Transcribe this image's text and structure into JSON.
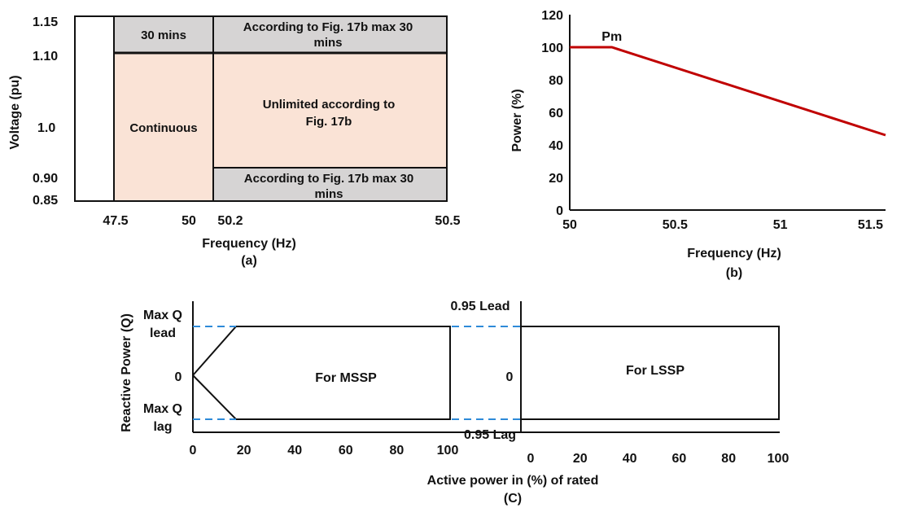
{
  "colors": {
    "gray_zone": "#d6d4d4",
    "peach_zone": "#fae3d6",
    "red_line": "#c00000",
    "blue_dash": "#2e8ad8",
    "ink": "#111111"
  },
  "chart_data": [
    {
      "type": "area",
      "panel": "(a)",
      "xlabel": "Frequency (Hz)",
      "ylabel": "Voltage (pu)",
      "x_ticks": [
        "47.5",
        "50",
        "50.2",
        "50.5"
      ],
      "y_ticks": [
        "1.15",
        "1.10",
        "1.0",
        "0.90",
        "0.85"
      ],
      "regions": [
        {
          "label": "30 mins",
          "f_from": 47.5,
          "f_to": 50.2,
          "v_from": 1.1,
          "v_to": 1.15,
          "color": "gray"
        },
        {
          "label": "According to Fig. 17b max 30 mins",
          "f_from": 50.2,
          "f_to": 50.5,
          "v_from": 1.1,
          "v_to": 1.15,
          "color": "gray"
        },
        {
          "label": "Continuous",
          "f_from": 47.5,
          "f_to": 50.2,
          "v_from": 0.85,
          "v_to": 1.1,
          "color": "peach"
        },
        {
          "label": "Unlimited according to Fig. 17b",
          "f_from": 50.2,
          "f_to": 50.5,
          "v_from": 0.9,
          "v_to": 1.1,
          "color": "peach"
        },
        {
          "label": "According to Fig. 17b max 30 mins",
          "f_from": 50.2,
          "f_to": 50.5,
          "v_from": 0.85,
          "v_to": 0.9,
          "color": "gray"
        }
      ]
    },
    {
      "type": "line",
      "panel": "(b)",
      "xlabel": "Frequency (Hz)",
      "ylabel": "Power (%)",
      "xlim": [
        50,
        51.5
      ],
      "ylim": [
        0,
        120
      ],
      "x_ticks": [
        50,
        50.5,
        51,
        51.5
      ],
      "y_ticks": [
        0,
        20,
        40,
        60,
        80,
        100,
        120
      ],
      "series": [
        {
          "name": "",
          "x": [
            50,
            50.2,
            51.5
          ],
          "y": [
            100,
            100,
            46
          ]
        }
      ],
      "annotations": [
        {
          "text": "Pm",
          "x": 50.2,
          "y": 100
        }
      ]
    },
    {
      "type": "line",
      "panel": "(C)",
      "xlabel": "Active power in (%) of rated",
      "ylabel": "Reactive Power (Q)",
      "left": {
        "label": "For MSSP",
        "x_ticks": [
          0,
          20,
          40,
          60,
          80,
          100
        ],
        "y_labels": [
          "Max Q lead",
          "0",
          "Max Q lag"
        ],
        "boundary": {
          "x": [
            0,
            20,
            100,
            100,
            20,
            0
          ],
          "y": [
            0,
            1,
            1,
            -1,
            -1,
            0
          ]
        }
      },
      "right": {
        "label": "For LSSP",
        "x_ticks": [
          0,
          20,
          40,
          60,
          80,
          100
        ],
        "y_labels": [
          "0.95 Lead",
          "0",
          "0.95 Lag"
        ],
        "boundary": {
          "x": [
            0,
            100,
            100,
            0
          ],
          "y": [
            1,
            1,
            -1,
            -1
          ]
        }
      }
    }
  ],
  "text": {
    "a": {
      "xlabel": "Frequency (Hz)",
      "ylabel": "Voltage (pu)",
      "caption": "(a)",
      "x_ticks": [
        "47.5",
        "50",
        "50.2",
        "50.5"
      ],
      "y_ticks": [
        "1.15",
        "1.10",
        "1.0",
        "0.90",
        "0.85"
      ],
      "zone_30": "30 mins",
      "zone_top_1": "According to Fig. 17b max 30",
      "zone_top_2": "mins",
      "zone_cont": "Continuous",
      "zone_unl_1": "Unlimited according to",
      "zone_unl_2": "Fig. 17b",
      "zone_bot_1": "According to Fig. 17b max 30",
      "zone_bot_2": "mins"
    },
    "b": {
      "xlabel": "Frequency (Hz)",
      "ylabel": "Power (%)",
      "caption": "(b)",
      "x_ticks": [
        "50",
        "50.5",
        "51",
        "51.5"
      ],
      "y_ticks": [
        "0",
        "20",
        "40",
        "60",
        "80",
        "100",
        "120"
      ],
      "annotation": "Pm"
    },
    "c": {
      "xlabel": "Active power in (%) of rated",
      "ylabel": "Reactive Power (Q)",
      "caption": "(C)",
      "left_label": "For MSSP",
      "right_label": "For LSSP",
      "max_q": "Max Q",
      "lead": "lead",
      "lag": "lag",
      "zero": "0",
      "lead95": "0.95 Lead",
      "lag95": "0.95 Lag",
      "x_ticks": [
        "0",
        "20",
        "40",
        "60",
        "80",
        "100"
      ]
    }
  }
}
